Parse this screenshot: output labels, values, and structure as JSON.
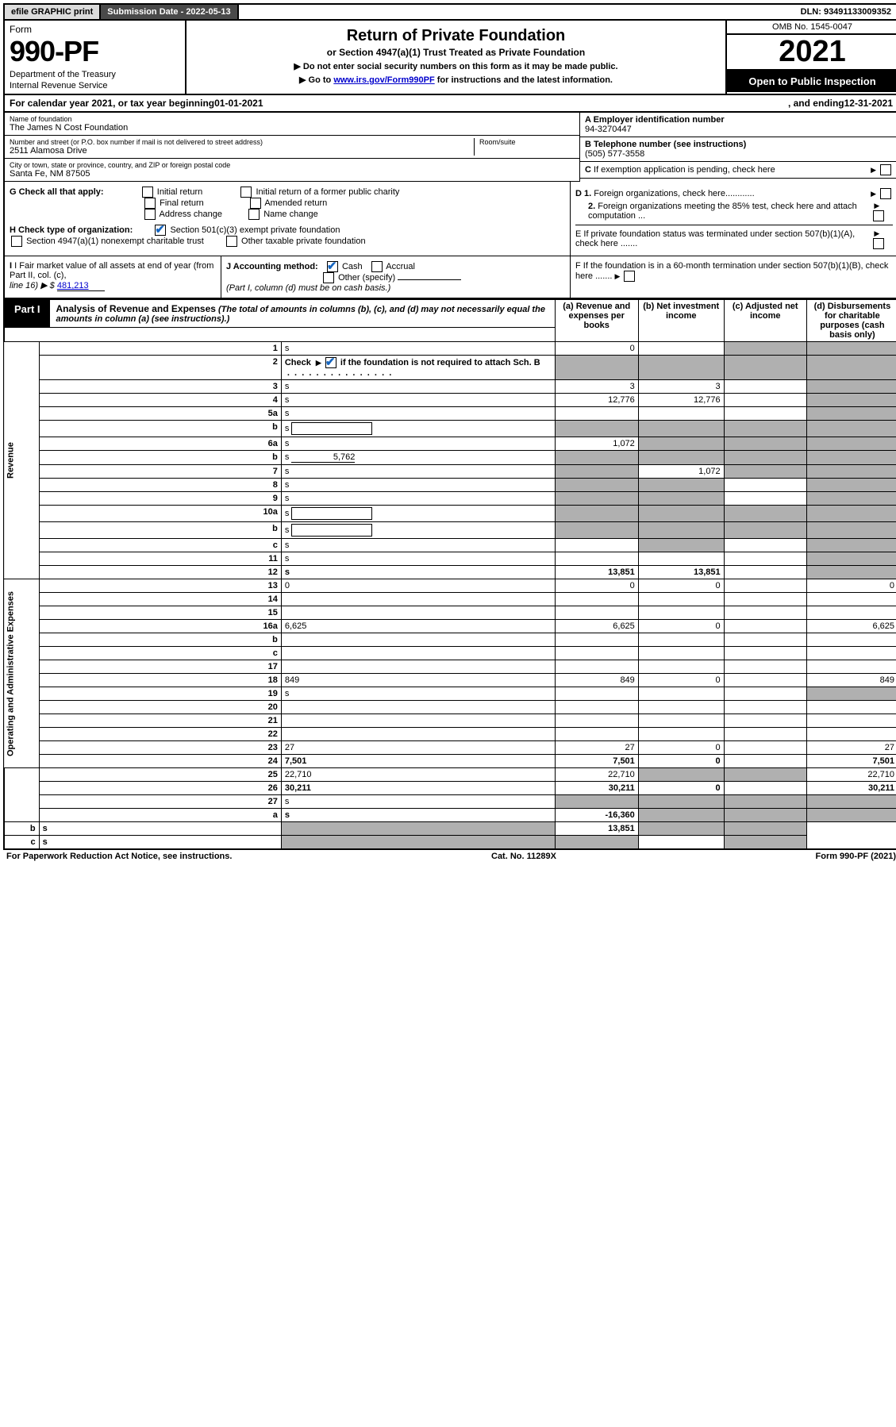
{
  "top": {
    "efile": "efile GRAPHIC print",
    "sub_label": "Submission Date - 2022-05-13",
    "dln": "DLN: 93491133009352"
  },
  "header": {
    "form_word": "Form",
    "form_no": "990-PF",
    "dept": "Department of the Treasury",
    "irs": "Internal Revenue Service",
    "title": "Return of Private Foundation",
    "subtitle": "or Section 4947(a)(1) Trust Treated as Private Foundation",
    "instr1": "▶ Do not enter social security numbers on this form as it may be made public.",
    "instr2_pre": "▶ Go to ",
    "instr2_link": "www.irs.gov/Form990PF",
    "instr2_post": " for instructions and the latest information.",
    "omb": "OMB No. 1545-0047",
    "year": "2021",
    "open": "Open to Public Inspection"
  },
  "calyear": {
    "pre": "For calendar year 2021, or tax year beginning ",
    "begin": "01-01-2021",
    "mid": " , and ending ",
    "end": "12-31-2021"
  },
  "info": {
    "name_lbl": "Name of foundation",
    "name": "The James N Cost Foundation",
    "addr_lbl": "Number and street (or P.O. box number if mail is not delivered to street address)",
    "addr": "2511 Alamosa Drive",
    "room_lbl": "Room/suite",
    "city_lbl": "City or town, state or province, country, and ZIP or foreign postal code",
    "city": "Santa Fe, NM  87505",
    "a_lbl": "A Employer identification number",
    "a_val": "94-3270447",
    "b_lbl": "B Telephone number (see instructions)",
    "b_val": "(505) 577-3558",
    "c_lbl": "C If exemption application is pending, check here",
    "d1": "D 1. Foreign organizations, check here............",
    "d2": "2. Foreign organizations meeting the 85% test, check here and attach computation ...",
    "e": "E  If private foundation status was terminated under section 507(b)(1)(A), check here .......",
    "f": "F  If the foundation is in a 60-month termination under section 507(b)(1)(B), check here .......",
    "g_lbl": "G Check all that apply:",
    "g_opts": [
      "Initial return",
      "Final return",
      "Address change",
      "Initial return of a former public charity",
      "Amended return",
      "Name change"
    ],
    "h_lbl": "H Check type of organization:",
    "h_opt1": "Section 501(c)(3) exempt private foundation",
    "h_opt2": "Section 4947(a)(1) nonexempt charitable trust",
    "h_opt3": "Other taxable private foundation",
    "i_lbl": "I Fair market value of all assets at end of year (from Part II, col. (c),",
    "i_line": "line 16) ▶ $",
    "i_val": "481,213",
    "j_lbl": "J Accounting method:",
    "j_cash": "Cash",
    "j_accr": "Accrual",
    "j_other": "Other (specify)",
    "j_note": "(Part I, column (d) must be on cash basis.)"
  },
  "part1": {
    "label": "Part I",
    "title": "Analysis of Revenue and Expenses",
    "note": "(The total of amounts in columns (b), (c), and (d) may not necessarily equal the amounts in column (a) (see instructions).)",
    "cols": {
      "a": "(a)   Revenue and expenses per books",
      "b": "(b)   Net investment income",
      "c": "(c)   Adjusted net income",
      "d": "(d)   Disbursements for charitable purposes (cash basis only)"
    }
  },
  "sides": {
    "rev": "Revenue",
    "exp": "Operating and Administrative Expenses"
  },
  "rows": [
    {
      "n": "1",
      "d": "s",
      "a": "0",
      "b": "",
      "c": "s"
    },
    {
      "n": "2",
      "d": "s",
      "a": "s",
      "b": "s",
      "c": "s",
      "bold": true,
      "checkrow": true
    },
    {
      "n": "3",
      "d": "s",
      "a": "3",
      "b": "3",
      "c": ""
    },
    {
      "n": "4",
      "d": "s",
      "a": "12,776",
      "b": "12,776",
      "c": ""
    },
    {
      "n": "5a",
      "d": "s",
      "a": "",
      "b": "",
      "c": ""
    },
    {
      "n": "b",
      "d": "s",
      "a": "s",
      "b": "s",
      "c": "s",
      "inline": true
    },
    {
      "n": "6a",
      "d": "s",
      "a": "1,072",
      "b": "s",
      "c": "s"
    },
    {
      "n": "b",
      "d": "s",
      "a": "s",
      "b": "s",
      "c": "s",
      "inline": true,
      "inlineVal": "5,762"
    },
    {
      "n": "7",
      "d": "s",
      "a": "s",
      "b": "1,072",
      "c": "s"
    },
    {
      "n": "8",
      "d": "s",
      "a": "s",
      "b": "s",
      "c": ""
    },
    {
      "n": "9",
      "d": "s",
      "a": "s",
      "b": "s",
      "c": ""
    },
    {
      "n": "10a",
      "d": "s",
      "a": "s",
      "b": "s",
      "c": "s",
      "inline": true
    },
    {
      "n": "b",
      "d": "s",
      "a": "s",
      "b": "s",
      "c": "s",
      "inline": true
    },
    {
      "n": "c",
      "d": "s",
      "a": "",
      "b": "s",
      "c": ""
    },
    {
      "n": "11",
      "d": "s",
      "a": "",
      "b": "",
      "c": ""
    },
    {
      "n": "12",
      "d": "s",
      "a": "13,851",
      "b": "13,851",
      "c": "",
      "bold": true
    },
    {
      "n": "13",
      "d": "0",
      "a": "0",
      "b": "0",
      "c": ""
    },
    {
      "n": "14",
      "d": "",
      "a": "",
      "b": "",
      "c": ""
    },
    {
      "n": "15",
      "d": "",
      "a": "",
      "b": "",
      "c": ""
    },
    {
      "n": "16a",
      "d": "6,625",
      "a": "6,625",
      "b": "0",
      "c": ""
    },
    {
      "n": "b",
      "d": "",
      "a": "",
      "b": "",
      "c": ""
    },
    {
      "n": "c",
      "d": "",
      "a": "",
      "b": "",
      "c": ""
    },
    {
      "n": "17",
      "d": "",
      "a": "",
      "b": "",
      "c": ""
    },
    {
      "n": "18",
      "d": "849",
      "a": "849",
      "b": "0",
      "c": ""
    },
    {
      "n": "19",
      "d": "s",
      "a": "",
      "b": "",
      "c": ""
    },
    {
      "n": "20",
      "d": "",
      "a": "",
      "b": "",
      "c": ""
    },
    {
      "n": "21",
      "d": "",
      "a": "",
      "b": "",
      "c": ""
    },
    {
      "n": "22",
      "d": "",
      "a": "",
      "b": "",
      "c": ""
    },
    {
      "n": "23",
      "d": "27",
      "a": "27",
      "b": "0",
      "c": ""
    },
    {
      "n": "24",
      "d": "7,501",
      "a": "7,501",
      "b": "0",
      "c": "",
      "bold": true
    },
    {
      "n": "25",
      "d": "22,710",
      "a": "22,710",
      "b": "s",
      "c": "s"
    },
    {
      "n": "26",
      "d": "30,211",
      "a": "30,211",
      "b": "0",
      "c": "",
      "bold": true
    },
    {
      "n": "27",
      "d": "s",
      "a": "s",
      "b": "s",
      "c": "s"
    },
    {
      "n": "a",
      "d": "s",
      "a": "-16,360",
      "b": "s",
      "c": "s",
      "bold": true
    },
    {
      "n": "b",
      "d": "s",
      "a": "s",
      "b": "13,851",
      "c": "s",
      "bold": true
    },
    {
      "n": "c",
      "d": "s",
      "a": "s",
      "b": "s",
      "c": "",
      "bold": true
    }
  ],
  "footer": {
    "left": "For Paperwork Reduction Act Notice, see instructions.",
    "mid": "Cat. No. 11289X",
    "right": "Form 990-PF (2021)"
  }
}
